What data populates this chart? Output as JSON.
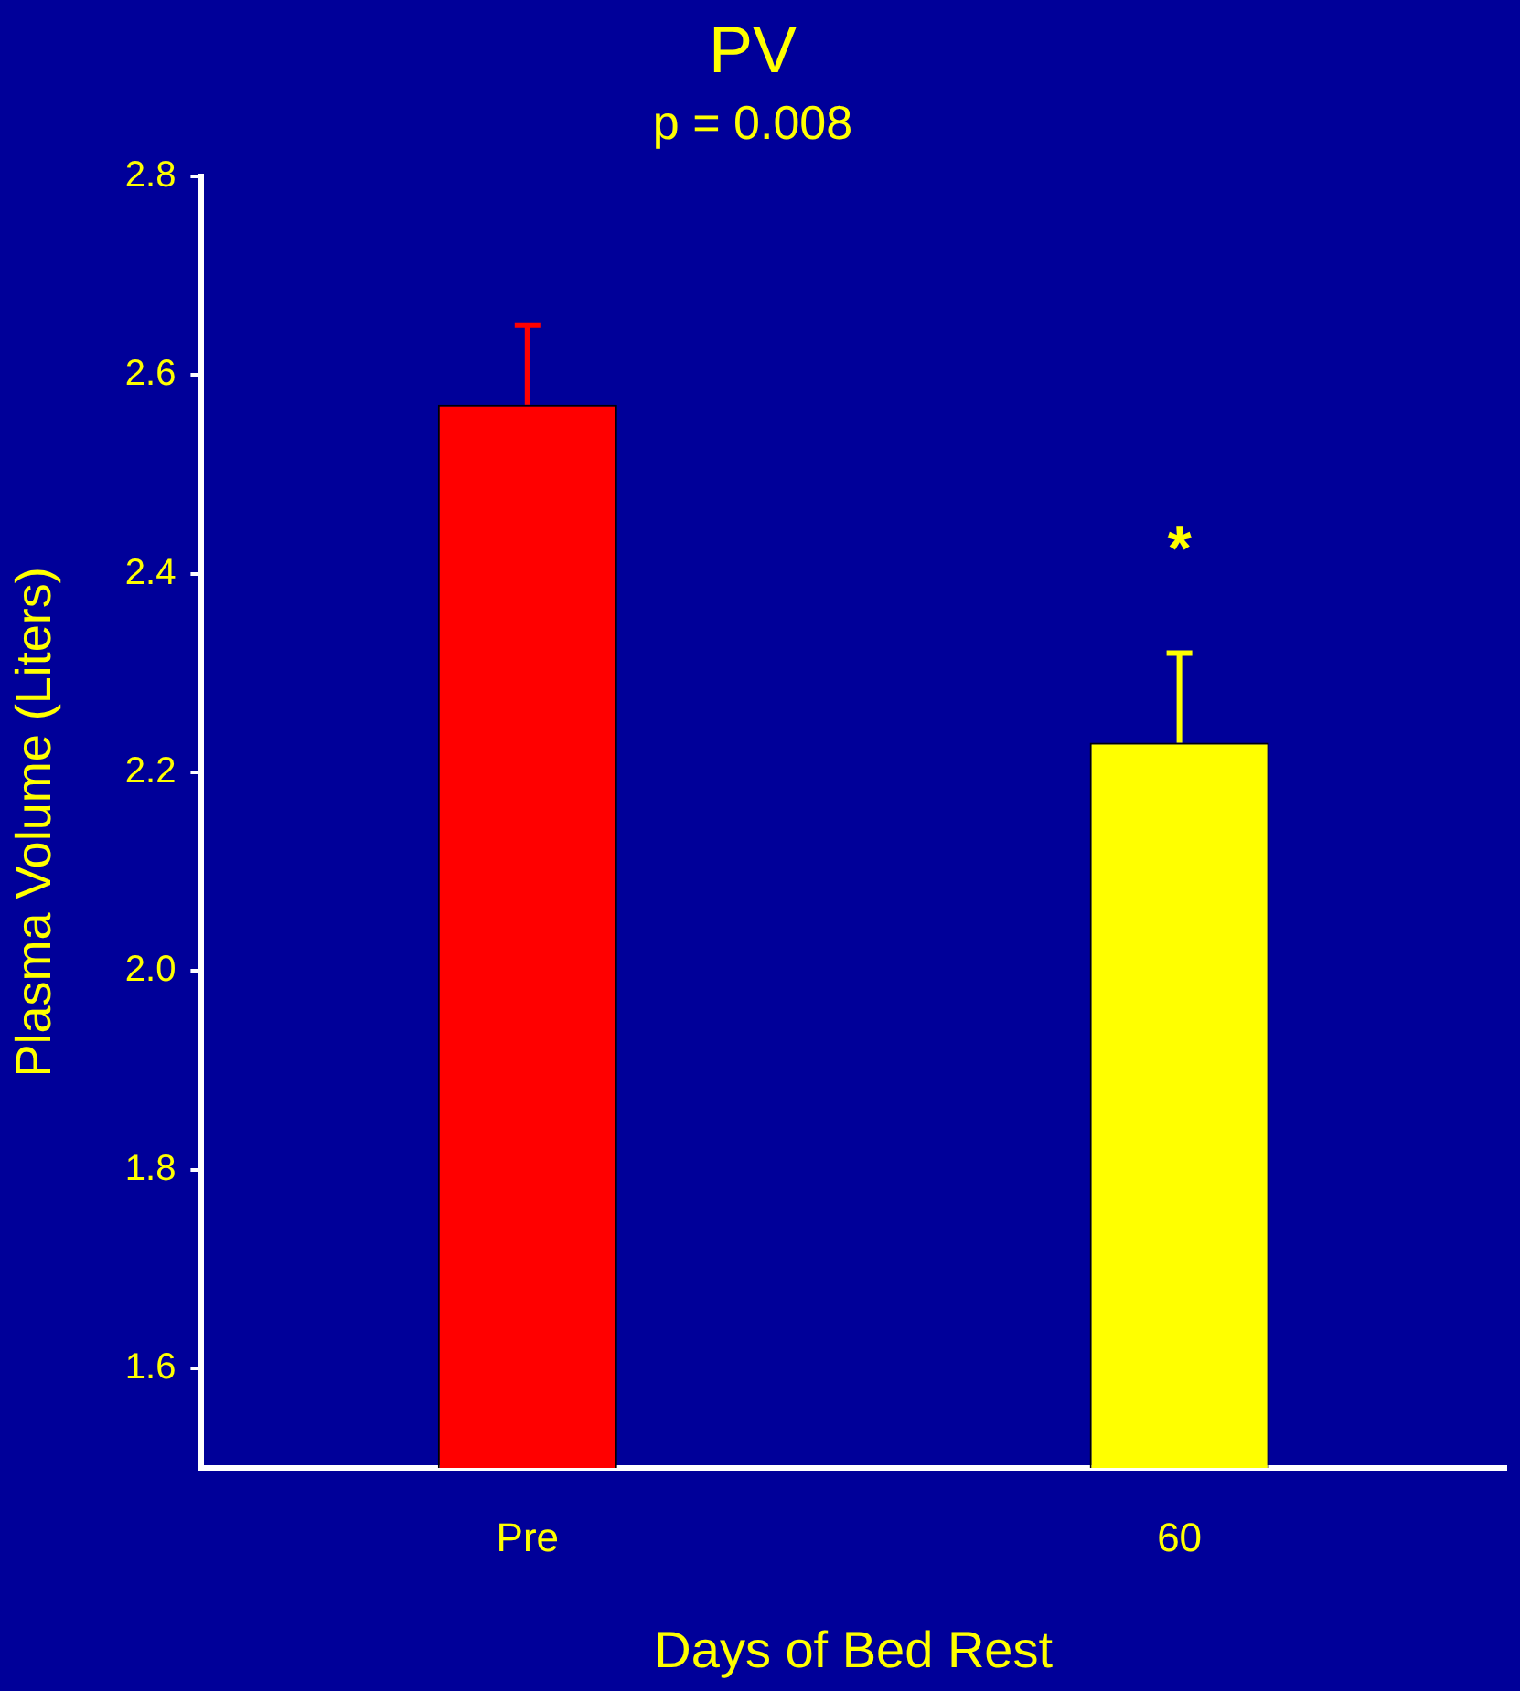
{
  "chart_data": {
    "type": "bar",
    "title": "PV",
    "subtitle": "p = 0.008",
    "xlabel": "Days of Bed Rest",
    "ylabel": "Plasma Volume (Liters)",
    "categories": [
      "Pre",
      "60"
    ],
    "values": [
      2.57,
      2.23
    ],
    "colors": [
      "#ff0000",
      "#ffff00"
    ],
    "errors": [
      [
        2.57,
        2.65
      ],
      [
        2.23,
        2.32
      ]
    ],
    "ylim": [
      1.5,
      2.8
    ],
    "yticks": [
      1.6,
      1.8,
      {
        "value": 2,
        "label": "2.0"
      },
      2.2,
      2.4,
      2.6,
      2.8
    ],
    "grid": false,
    "legend": false,
    "annotations": [
      "*"
    ]
  }
}
